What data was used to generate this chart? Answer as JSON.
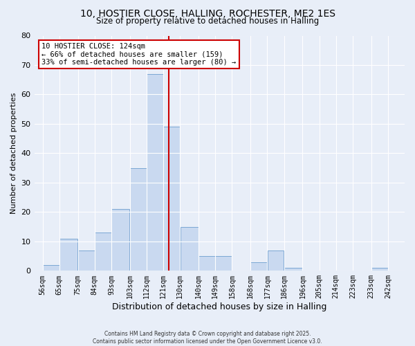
{
  "title": "10, HOSTIER CLOSE, HALLING, ROCHESTER, ME2 1ES",
  "subtitle": "Size of property relative to detached houses in Halling",
  "xlabel": "Distribution of detached houses by size in Halling",
  "ylabel": "Number of detached properties",
  "bin_labels": [
    "56sqm",
    "65sqm",
    "75sqm",
    "84sqm",
    "93sqm",
    "103sqm",
    "112sqm",
    "121sqm",
    "130sqm",
    "140sqm",
    "149sqm",
    "158sqm",
    "168sqm",
    "177sqm",
    "186sqm",
    "196sqm",
    "205sqm",
    "214sqm",
    "223sqm",
    "233sqm",
    "242sqm"
  ],
  "bin_edges": [
    56,
    65,
    75,
    84,
    93,
    103,
    112,
    121,
    130,
    140,
    149,
    158,
    168,
    177,
    186,
    196,
    205,
    214,
    223,
    233,
    242
  ],
  "bar_heights": [
    2,
    11,
    7,
    13,
    21,
    35,
    67,
    49,
    15,
    5,
    5,
    0,
    3,
    7,
    1,
    0,
    0,
    0,
    0,
    1,
    0
  ],
  "bar_color": "#c9d9f0",
  "bar_edge_color": "#7ba7d4",
  "property_size": 124,
  "vline_color": "#cc0000",
  "annotation_title": "10 HOSTIER CLOSE: 124sqm",
  "annotation_line1": "← 66% of detached houses are smaller (159)",
  "annotation_line2": "33% of semi-detached houses are larger (80) →",
  "annotation_box_color": "#ffffff",
  "annotation_box_edge_color": "#cc0000",
  "ylim": [
    0,
    80
  ],
  "yticks": [
    0,
    10,
    20,
    30,
    40,
    50,
    60,
    70,
    80
  ],
  "background_color": "#e8eef8",
  "grid_color": "#ffffff",
  "footer1": "Contains HM Land Registry data © Crown copyright and database right 2025.",
  "footer2": "Contains public sector information licensed under the Open Government Licence v3.0."
}
